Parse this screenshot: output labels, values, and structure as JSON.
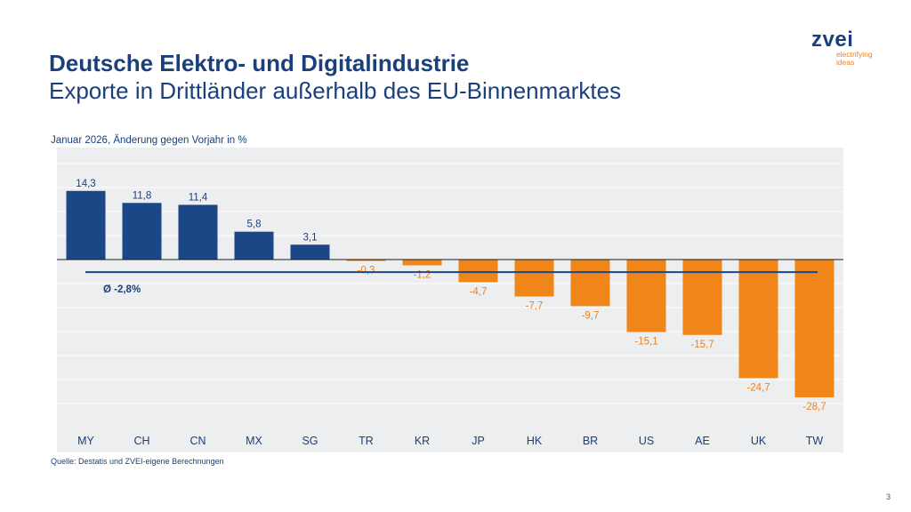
{
  "header": {
    "title": "Deutsche Elektro- und Digitalindustrie",
    "subtitle": "Exporte in Drittländer außerhalb des EU-Binnenmarktes"
  },
  "logo": {
    "word": "zvei",
    "tag_line1": "electrifying",
    "tag_line2": "ideas"
  },
  "chart_data": {
    "type": "bar",
    "title": "Januar 2026, Änderung gegen Vorjahr in %",
    "categories": [
      "MY",
      "CH",
      "CN",
      "MX",
      "SG",
      "TR",
      "KR",
      "JP",
      "HK",
      "BR",
      "US",
      "AE",
      "UK",
      "TW"
    ],
    "values": [
      14.3,
      11.8,
      11.4,
      5.8,
      3.1,
      -0.3,
      -1.2,
      -4.7,
      -7.7,
      -9.7,
      -15.1,
      -15.7,
      -24.7,
      -28.7
    ],
    "value_labels": [
      "14,3",
      "11,8",
      "11,4",
      "5,8",
      "3,1",
      "-0,3",
      "-1,2",
      "-4,7",
      "-7,7",
      "-9,7",
      "-15,1",
      "-15,7",
      "-24,7",
      "-28,7"
    ],
    "average": -2.8,
    "average_label": "Ø -2,8%",
    "ylim": [
      -35,
      25
    ],
    "grid": true,
    "colors": {
      "positive": "#1b4786",
      "negative": "#f08519",
      "average_line": "#1b4786"
    }
  },
  "footer": {
    "source": "Quelle: Destatis und ZVEI-eigene Berechnungen",
    "page": "3"
  }
}
